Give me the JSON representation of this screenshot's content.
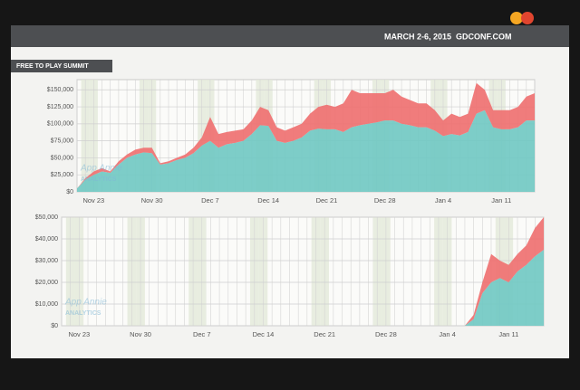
{
  "header": {
    "event": "MARCH 2-6, 2015",
    "site": "GDCONF.COM",
    "section": "FREE TO PLAY SUMMIT"
  },
  "watermark": {
    "brand": "App Annie",
    "tag": "ANALYTICS"
  },
  "chart_data": [
    {
      "type": "area",
      "stacked": true,
      "grid": true,
      "categories": [
        null,
        null,
        "Nov 23",
        null,
        null,
        null,
        null,
        null,
        null,
        "Nov 30",
        null,
        null,
        null,
        null,
        null,
        null,
        "Dec 7",
        null,
        null,
        null,
        null,
        null,
        null,
        "Dec 14",
        null,
        null,
        null,
        null,
        null,
        null,
        "Dec 21",
        null,
        null,
        null,
        null,
        null,
        null,
        "Dec 28",
        null,
        null,
        null,
        null,
        null,
        null,
        "Jan 4",
        null,
        null,
        null,
        null,
        null,
        null,
        "Jan 11",
        null,
        null,
        null,
        null
      ],
      "ylim": [
        0,
        165000
      ],
      "yticks": [
        {
          "value": 0,
          "label": "$0"
        },
        {
          "value": 25000,
          "label": "$25,000"
        },
        {
          "value": 50000,
          "label": "$50,000"
        },
        {
          "value": 75000,
          "label": "$75,000"
        },
        {
          "value": 100000,
          "label": "$100,000"
        },
        {
          "value": 125000,
          "label": "$125,000"
        },
        {
          "value": 150000,
          "label": "$150,000"
        }
      ],
      "series": [
        {
          "color": "#72c9c3",
          "values": [
            5000,
            18000,
            25000,
            30000,
            28000,
            40000,
            50000,
            55000,
            58000,
            57000,
            40000,
            42000,
            47000,
            50000,
            57000,
            68000,
            75000,
            65000,
            70000,
            72000,
            75000,
            85000,
            98000,
            97000,
            75000,
            72000,
            75000,
            80000,
            90000,
            93000,
            92000,
            92000,
            88000,
            95000,
            98000,
            100000,
            102000,
            105000,
            105000,
            100000,
            98000,
            95000,
            95000,
            90000,
            82000,
            85000,
            83000,
            88000,
            115000,
            120000,
            95000,
            92000,
            92000,
            95000,
            105000,
            105000
          ]
        },
        {
          "color": "#ef7171",
          "values": [
            0,
            2000,
            5000,
            5000,
            2000,
            5000,
            5000,
            7000,
            7000,
            8000,
            2000,
            3000,
            3000,
            5000,
            8000,
            12000,
            35000,
            20000,
            18000,
            18000,
            17000,
            20000,
            27000,
            23000,
            20000,
            18000,
            20000,
            20000,
            25000,
            32000,
            36000,
            33000,
            42000,
            55000,
            47000,
            45000,
            43000,
            40000,
            45000,
            40000,
            37000,
            35000,
            35000,
            30000,
            23000,
            30000,
            27000,
            27000,
            45000,
            30000,
            25000,
            28000,
            28000,
            30000,
            35000,
            40000
          ]
        }
      ]
    },
    {
      "type": "area",
      "stacked": true,
      "grid": true,
      "categories": [
        null,
        null,
        "Nov 23",
        null,
        null,
        null,
        null,
        null,
        null,
        "Nov 30",
        null,
        null,
        null,
        null,
        null,
        null,
        "Dec 7",
        null,
        null,
        null,
        null,
        null,
        null,
        "Dec 14",
        null,
        null,
        null,
        null,
        null,
        null,
        "Dec 21",
        null,
        null,
        null,
        null,
        null,
        null,
        "Dec 28",
        null,
        null,
        null,
        null,
        null,
        null,
        "Jan 4",
        null,
        null,
        null,
        null,
        null,
        null,
        "Jan 11",
        null,
        null,
        null,
        null
      ],
      "ylim": [
        0,
        50000
      ],
      "yticks": [
        {
          "value": 0,
          "label": "$0"
        },
        {
          "value": 10000,
          "label": "$10,000"
        },
        {
          "value": 20000,
          "label": "$20,000"
        },
        {
          "value": 30000,
          "label": "$30,000"
        },
        {
          "value": 40000,
          "label": "$40,000"
        },
        {
          "value": 50000,
          "label": "$50,000"
        }
      ],
      "series": [
        {
          "color": "#72c9c3",
          "values": [
            0,
            0,
            0,
            0,
            0,
            0,
            0,
            0,
            0,
            0,
            0,
            0,
            0,
            0,
            0,
            0,
            0,
            0,
            0,
            0,
            0,
            0,
            0,
            0,
            0,
            0,
            0,
            0,
            0,
            0,
            0,
            0,
            0,
            0,
            0,
            0,
            0,
            0,
            0,
            0,
            0,
            0,
            0,
            0,
            0,
            0,
            0,
            3000,
            15000,
            20000,
            22000,
            20000,
            25000,
            28000,
            32000,
            35000
          ]
        },
        {
          "color": "#ef7171",
          "values": [
            0,
            0,
            0,
            0,
            0,
            0,
            0,
            0,
            0,
            0,
            0,
            0,
            0,
            0,
            0,
            0,
            0,
            0,
            0,
            0,
            0,
            0,
            0,
            0,
            0,
            0,
            0,
            0,
            0,
            0,
            0,
            0,
            0,
            0,
            0,
            0,
            0,
            0,
            0,
            0,
            0,
            0,
            0,
            0,
            0,
            0,
            0,
            2000,
            5000,
            13000,
            8000,
            8000,
            8000,
            9000,
            13000,
            15000
          ]
        }
      ]
    }
  ]
}
